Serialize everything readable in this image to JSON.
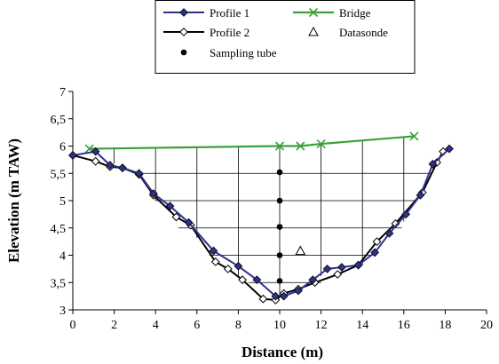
{
  "chart_data": {
    "type": "line",
    "title": "",
    "xlabel": "Distance (m)",
    "ylabel": "Elevation (m TAW)",
    "xlim": [
      0,
      20
    ],
    "ylim": [
      3,
      7
    ],
    "x_ticks": [
      "0",
      "2",
      "4",
      "6",
      "8",
      "10",
      "12",
      "14",
      "16",
      "18",
      "20"
    ],
    "y_ticks": [
      "3",
      "3,5",
      "4",
      "4,5",
      "5",
      "5,5",
      "6",
      "6,5",
      "7"
    ],
    "legend_position": "top",
    "grid_note": "partial grid inside bridge/bed cross-section",
    "series": [
      {
        "name": "Profile 1",
        "color": "#2e3192",
        "marker": "filled-diamond",
        "x": [
          0,
          1.1,
          1.8,
          2.4,
          3.2,
          3.9,
          4.7,
          5.6,
          6.8,
          8.0,
          8.9,
          9.8,
          10.2,
          10.9,
          11.6,
          12.3,
          13.0,
          13.8,
          14.6,
          15.3,
          16.1,
          16.8,
          17.4,
          18.2
        ],
        "y": [
          5.83,
          5.9,
          5.65,
          5.6,
          5.5,
          5.13,
          4.9,
          4.6,
          4.08,
          3.8,
          3.55,
          3.25,
          3.25,
          3.35,
          3.55,
          3.75,
          3.78,
          3.82,
          4.05,
          4.4,
          4.75,
          5.1,
          5.67,
          5.95
        ]
      },
      {
        "name": "Profile 2",
        "color": "#000000",
        "marker": "open-diamond",
        "x": [
          0,
          1.1,
          1.8,
          2.4,
          3.2,
          3.9,
          5.0,
          5.7,
          6.9,
          7.5,
          8.2,
          9.2,
          9.8,
          10.2,
          10.9,
          11.7,
          12.8,
          13.8,
          14.7,
          15.6,
          16.9,
          17.6,
          17.9
        ],
        "y": [
          5.83,
          5.72,
          5.62,
          5.6,
          5.48,
          5.1,
          4.7,
          4.55,
          3.88,
          3.75,
          3.55,
          3.2,
          3.18,
          3.3,
          3.38,
          3.5,
          3.65,
          3.82,
          4.25,
          4.58,
          5.15,
          5.7,
          5.9
        ]
      },
      {
        "name": "Bridge",
        "color": "#3aa13a",
        "marker": "x",
        "x": [
          0.8,
          10,
          11,
          12,
          16.5
        ],
        "y": [
          5.95,
          6.0,
          6.0,
          6.04,
          6.18
        ]
      },
      {
        "name": "Datasonde",
        "color": "#000000",
        "marker": "open-triangle",
        "x": [
          11
        ],
        "y": [
          4.08
        ]
      },
      {
        "name": "Sampling tube",
        "color": "#000000",
        "marker": "filled-circle",
        "x": [
          10,
          10,
          10,
          10,
          10
        ],
        "y": [
          5.52,
          5.0,
          4.52,
          4.0,
          3.53
        ]
      }
    ]
  }
}
